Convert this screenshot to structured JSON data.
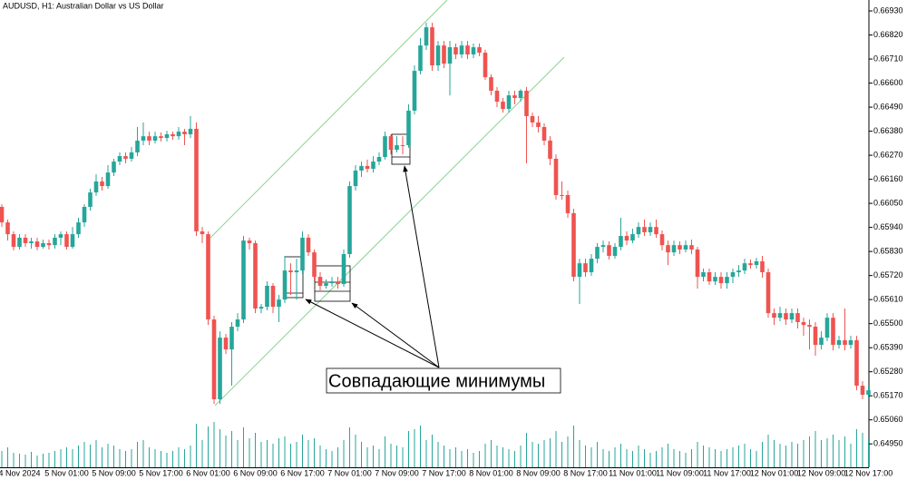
{
  "chart_data": {
    "type": "candlestick",
    "title": "AUDUSD, H1:  Australian Dollar vs US Dollar",
    "annotation": "Совпадающие минимумы",
    "up_color": "#26a69a",
    "down_color": "#ef5350",
    "volume_color": "#26a69a",
    "ylim": [
      0.64843,
      0.6698
    ],
    "yticks": [
      {
        "value": 0.6693,
        "label": "0.66930"
      },
      {
        "value": 0.6682,
        "label": "0.66820"
      },
      {
        "value": 0.6671,
        "label": "0.66710"
      },
      {
        "value": 0.666,
        "label": "0.66600"
      },
      {
        "value": 0.6649,
        "label": "0.66490"
      },
      {
        "value": 0.6638,
        "label": "0.66380"
      },
      {
        "value": 0.6627,
        "label": "0.66270"
      },
      {
        "value": 0.6616,
        "label": "0.66160"
      },
      {
        "value": 0.6605,
        "label": "0.66050"
      },
      {
        "value": 0.6594,
        "label": "0.65940"
      },
      {
        "value": 0.6583,
        "label": "0.65830"
      },
      {
        "value": 0.6572,
        "label": "0.65720"
      },
      {
        "value": 0.6561,
        "label": "0.65610"
      },
      {
        "value": 0.655,
        "label": "0.65500"
      },
      {
        "value": 0.6539,
        "label": "0.65390"
      },
      {
        "value": 0.6528,
        "label": "0.65280"
      },
      {
        "value": 0.6517,
        "label": "0.65170"
      },
      {
        "value": 0.6506,
        "label": "0.65060"
      },
      {
        "value": 0.6495,
        "label": "0.64950"
      }
    ],
    "categories": [
      null,
      null,
      null,
      "4 Nov 2024",
      null,
      null,
      null,
      null,
      null,
      null,
      null,
      "5 Nov 01:00",
      null,
      null,
      null,
      null,
      null,
      null,
      null,
      "5 Nov 09:00",
      null,
      null,
      null,
      null,
      null,
      null,
      null,
      "5 Nov 17:00",
      null,
      null,
      null,
      null,
      null,
      null,
      null,
      "6 Nov 01:00",
      null,
      null,
      null,
      null,
      null,
      null,
      null,
      "6 Nov 09:00",
      null,
      null,
      null,
      null,
      null,
      null,
      null,
      "6 Nov 17:00",
      null,
      null,
      null,
      null,
      null,
      null,
      null,
      "7 Nov 01:00",
      null,
      null,
      null,
      null,
      null,
      null,
      null,
      "7 Nov 09:00",
      null,
      null,
      null,
      null,
      null,
      null,
      null,
      "7 Nov 17:00",
      null,
      null,
      null,
      null,
      null,
      null,
      null,
      "8 Nov 01:00",
      null,
      null,
      null,
      null,
      null,
      null,
      null,
      "8 Nov 09:00",
      null,
      null,
      null,
      null,
      null,
      null,
      null,
      "8 Nov 17:00",
      null,
      null,
      null,
      null,
      null,
      null,
      null,
      "11 Nov 01:00",
      null,
      null,
      null,
      null,
      null,
      null,
      null,
      "11 Nov 09:00",
      null,
      null,
      null,
      null,
      null,
      null,
      null,
      "11 Nov 17:00",
      null,
      null,
      null,
      null,
      null,
      null,
      null,
      "12 Nov 01:00",
      null,
      null,
      null,
      null,
      null,
      null,
      null,
      "12 Nov 09:00",
      null,
      null,
      null,
      null,
      null,
      null,
      null,
      "12 Nov 17:00"
    ],
    "open": [
      0.66034,
      0.65963,
      0.65909,
      0.65851,
      0.65893,
      0.65868,
      0.65876,
      0.65851,
      0.65868,
      0.65859,
      0.65893,
      0.65909,
      0.65851,
      0.65909,
      0.65963,
      0.66034,
      0.661,
      0.6615,
      0.66129,
      0.66191,
      0.66241,
      0.66266,
      0.66254,
      0.66283,
      0.66337,
      0.66357,
      0.66337,
      0.66357,
      0.66349,
      0.66366,
      0.66357,
      0.66378,
      0.66366,
      0.66391,
      0.65922,
      0.65909,
      0.65519,
      0.65154,
      0.65436,
      0.65382,
      0.65486,
      0.65519,
      0.6588,
      0.65868,
      0.65569,
      0.65577,
      0.65673,
      0.65577,
      0.6561,
      0.65743,
      0.65735,
      0.65743,
      0.65893,
      0.65826,
      0.65714,
      0.65673,
      0.65685,
      0.65693,
      0.65681,
      0.65818,
      0.66129,
      0.662,
      0.66221,
      0.66208,
      0.66241,
      0.66262,
      0.66357,
      0.66295,
      0.66316,
      0.66316,
      0.66474,
      0.66656,
      0.66772,
      0.66855,
      0.66681,
      0.66772,
      0.66689,
      0.66764,
      0.66731,
      0.66772,
      0.66731,
      0.66764,
      0.66739,
      0.66627,
      0.66565,
      0.66515,
      0.66482,
      0.66544,
      0.66532,
      0.66565,
      0.66449,
      0.6642,
      0.66399,
      0.66337,
      0.66254,
      0.66088,
      0.66088,
      0.66005,
      0.65714,
      0.65776,
      0.65735,
      0.65797,
      0.65851,
      0.65859,
      0.6581,
      0.65851,
      0.65901,
      0.6588,
      0.65909,
      0.65942,
      0.65918,
      0.65942,
      0.65909,
      0.65859,
      0.65826,
      0.65859,
      0.65839,
      0.65859,
      0.65839,
      0.65714,
      0.65735,
      0.65693,
      0.65714,
      0.65685,
      0.65714,
      0.65735,
      0.65743,
      0.65776,
      0.65768,
      0.65785,
      0.65735,
      0.65548,
      0.65527,
      0.65548,
      0.65519,
      0.65548,
      0.65507,
      0.65494,
      0.65486,
      0.65403,
      0.65436,
      0.65527,
      0.65403,
      0.65424,
      0.65403,
      0.65424,
      0.65216,
      0.65175
    ],
    "high": [
      0.66046,
      0.65976,
      0.65922,
      0.65909,
      0.65909,
      0.65893,
      0.65893,
      0.65884,
      0.65884,
      0.65909,
      0.65922,
      0.65922,
      0.65942,
      0.65984,
      0.66046,
      0.66117,
      0.66183,
      0.66171,
      0.66225,
      0.66254,
      0.66283,
      0.66283,
      0.66308,
      0.66399,
      0.6642,
      0.66378,
      0.66378,
      0.66374,
      0.66382,
      0.66378,
      0.66399,
      0.66391,
      0.66449,
      0.6642,
      0.65942,
      0.65922,
      0.65536,
      0.65465,
      0.65453,
      0.65507,
      0.65548,
      0.65901,
      0.65893,
      0.6588,
      0.6559,
      0.65693,
      0.65685,
      0.65631,
      0.6581,
      0.65776,
      0.65797,
      0.65922,
      0.65909,
      0.65839,
      0.65735,
      0.65702,
      0.65714,
      0.65714,
      0.65839,
      0.6615,
      0.66225,
      0.66241,
      0.6625,
      0.66266,
      0.66283,
      0.66378,
      0.66366,
      0.66357,
      0.66357,
      0.66503,
      0.66681,
      0.66806,
      0.66876,
      0.66876,
      0.66793,
      0.66793,
      0.66793,
      0.66781,
      0.66793,
      0.66793,
      0.66781,
      0.66781,
      0.66752,
      0.6664,
      0.66582,
      0.66532,
      0.66565,
      0.66565,
      0.66573,
      0.66582,
      0.66465,
      0.66449,
      0.66416,
      0.66357,
      0.66274,
      0.6615,
      0.66108,
      0.66025,
      0.65797,
      0.65797,
      0.65818,
      0.65868,
      0.6588,
      0.65876,
      0.65868,
      0.65984,
      0.65922,
      0.65934,
      0.65963,
      0.65976,
      0.65963,
      0.65976,
      0.65926,
      0.6588,
      0.6588,
      0.65876,
      0.6588,
      0.65884,
      0.65851,
      0.65752,
      0.65752,
      0.65735,
      0.65735,
      0.65735,
      0.65752,
      0.65768,
      0.65797,
      0.65793,
      0.65801,
      0.6581,
      0.65752,
      0.65569,
      0.65577,
      0.65569,
      0.65569,
      0.65569,
      0.65527,
      0.65519,
      0.65507,
      0.65465,
      0.65548,
      0.65548,
      0.65444,
      0.65569,
      0.65444,
      0.65444,
      0.65237,
      0.65216
    ],
    "low": [
      0.65942,
      0.6588,
      0.65835,
      0.65839,
      0.65851,
      0.65843,
      0.65835,
      0.65843,
      0.65839,
      0.65843,
      0.65859,
      0.65839,
      0.65843,
      0.65893,
      0.65942,
      0.66017,
      0.66084,
      0.66108,
      0.66117,
      0.66175,
      0.66225,
      0.66233,
      0.66241,
      0.66266,
      0.66316,
      0.66316,
      0.66324,
      0.66333,
      0.66333,
      0.66341,
      0.66341,
      0.66316,
      0.66349,
      0.65901,
      0.65868,
      0.65494,
      0.65133,
      0.65133,
      0.65361,
      0.65216,
      0.65465,
      0.65503,
      0.65839,
      0.65548,
      0.65548,
      0.65561,
      0.65548,
      0.65507,
      0.65594,
      0.65631,
      0.6561,
      0.65727,
      0.6581,
      0.65693,
      0.65652,
      0.6566,
      0.65669,
      0.6566,
      0.65669,
      0.65801,
      0.66108,
      0.66171,
      0.66191,
      0.66191,
      0.66225,
      0.6625,
      0.66274,
      0.66283,
      0.66274,
      0.66304,
      0.66457,
      0.6664,
      0.66752,
      0.66656,
      0.66656,
      0.66669,
      0.66544,
      0.6671,
      0.66714,
      0.6671,
      0.66714,
      0.66723,
      0.66615,
      0.66544,
      0.6649,
      0.66465,
      0.66465,
      0.66503,
      0.66515,
      0.66233,
      0.66399,
      0.66374,
      0.66316,
      0.66225,
      0.66067,
      0.66067,
      0.65984,
      0.65693,
      0.6559,
      0.65714,
      0.65718,
      0.65776,
      0.65826,
      0.65793,
      0.65797,
      0.65835,
      0.65859,
      0.65868,
      0.65893,
      0.65901,
      0.65901,
      0.65893,
      0.65835,
      0.65768,
      0.6581,
      0.65818,
      0.65826,
      0.65818,
      0.6566,
      0.65693,
      0.65677,
      0.65677,
      0.6566,
      0.6566,
      0.65685,
      0.65714,
      0.65727,
      0.65752,
      0.65752,
      0.6571,
      0.65527,
      0.65494,
      0.65511,
      0.65494,
      0.65503,
      0.65478,
      0.65444,
      0.65382,
      0.65353,
      0.65382,
      0.6542,
      0.65378,
      0.65386,
      0.65378,
      0.65386,
      0.65195,
      0.65154,
      0.65162
    ],
    "close": [
      0.65963,
      0.65909,
      0.65851,
      0.65893,
      0.65868,
      0.65876,
      0.65851,
      0.65868,
      0.65859,
      0.65893,
      0.65909,
      0.65851,
      0.65909,
      0.65963,
      0.66034,
      0.661,
      0.6615,
      0.66129,
      0.66191,
      0.66241,
      0.66266,
      0.66254,
      0.66283,
      0.66337,
      0.66357,
      0.66337,
      0.66357,
      0.66349,
      0.66366,
      0.66357,
      0.66378,
      0.66366,
      0.66391,
      0.65922,
      0.65909,
      0.65519,
      0.65154,
      0.65436,
      0.65382,
      0.65486,
      0.65519,
      0.6588,
      0.65868,
      0.65569,
      0.65577,
      0.65673,
      0.65577,
      0.6561,
      0.65743,
      0.65735,
      0.65743,
      0.65893,
      0.65826,
      0.65714,
      0.65673,
      0.65685,
      0.65693,
      0.65681,
      0.65818,
      0.66129,
      0.662,
      0.66221,
      0.66208,
      0.66241,
      0.66262,
      0.66357,
      0.66295,
      0.66316,
      0.66316,
      0.66474,
      0.66656,
      0.66772,
      0.66855,
      0.66681,
      0.66772,
      0.66689,
      0.66764,
      0.66731,
      0.66772,
      0.66731,
      0.66764,
      0.66739,
      0.66627,
      0.66565,
      0.66515,
      0.66482,
      0.66544,
      0.66532,
      0.66565,
      0.66449,
      0.6642,
      0.66399,
      0.66337,
      0.66254,
      0.66088,
      0.66088,
      0.66005,
      0.65714,
      0.65776,
      0.65735,
      0.65797,
      0.65851,
      0.65859,
      0.6581,
      0.65851,
      0.65901,
      0.6588,
      0.65909,
      0.65942,
      0.65918,
      0.65942,
      0.65909,
      0.65859,
      0.65826,
      0.65859,
      0.65839,
      0.65859,
      0.65839,
      0.65714,
      0.65735,
      0.65693,
      0.65714,
      0.65685,
      0.65714,
      0.65735,
      0.65743,
      0.65776,
      0.65768,
      0.65785,
      0.65735,
      0.65548,
      0.65527,
      0.65548,
      0.65519,
      0.65548,
      0.65507,
      0.65494,
      0.65486,
      0.65403,
      0.65436,
      0.65527,
      0.65403,
      0.65424,
      0.65403,
      0.65424,
      0.65216,
      0.65175,
      0.65195
    ],
    "volume": [
      18,
      22,
      16,
      15,
      14,
      17,
      13,
      15,
      16,
      18,
      20,
      22,
      20,
      24,
      28,
      25,
      30,
      22,
      26,
      24,
      20,
      18,
      20,
      28,
      30,
      22,
      20,
      18,
      16,
      18,
      22,
      20,
      24,
      48,
      30,
      45,
      50,
      42,
      35,
      40,
      30,
      44,
      32,
      38,
      28,
      30,
      26,
      32,
      34,
      26,
      28,
      36,
      30,
      32,
      24,
      20,
      18,
      22,
      30,
      44,
      36,
      28,
      22,
      24,
      20,
      34,
      26,
      24,
      22,
      40,
      42,
      46,
      30,
      36,
      28,
      24,
      20,
      22,
      18,
      20,
      16,
      18,
      26,
      30,
      24,
      22,
      20,
      18,
      24,
      38,
      28,
      26,
      30,
      32,
      40,
      28,
      34,
      46,
      30,
      24,
      22,
      28,
      20,
      18,
      22,
      26,
      20,
      18,
      24,
      20,
      16,
      18,
      22,
      26,
      20,
      18,
      16,
      20,
      28,
      24,
      22,
      20,
      18,
      20,
      22,
      24,
      26,
      20,
      18,
      28,
      36,
      30,
      26,
      24,
      28,
      26,
      30,
      34,
      40,
      30,
      32,
      36,
      30,
      34,
      26,
      42,
      38,
      30
    ]
  }
}
